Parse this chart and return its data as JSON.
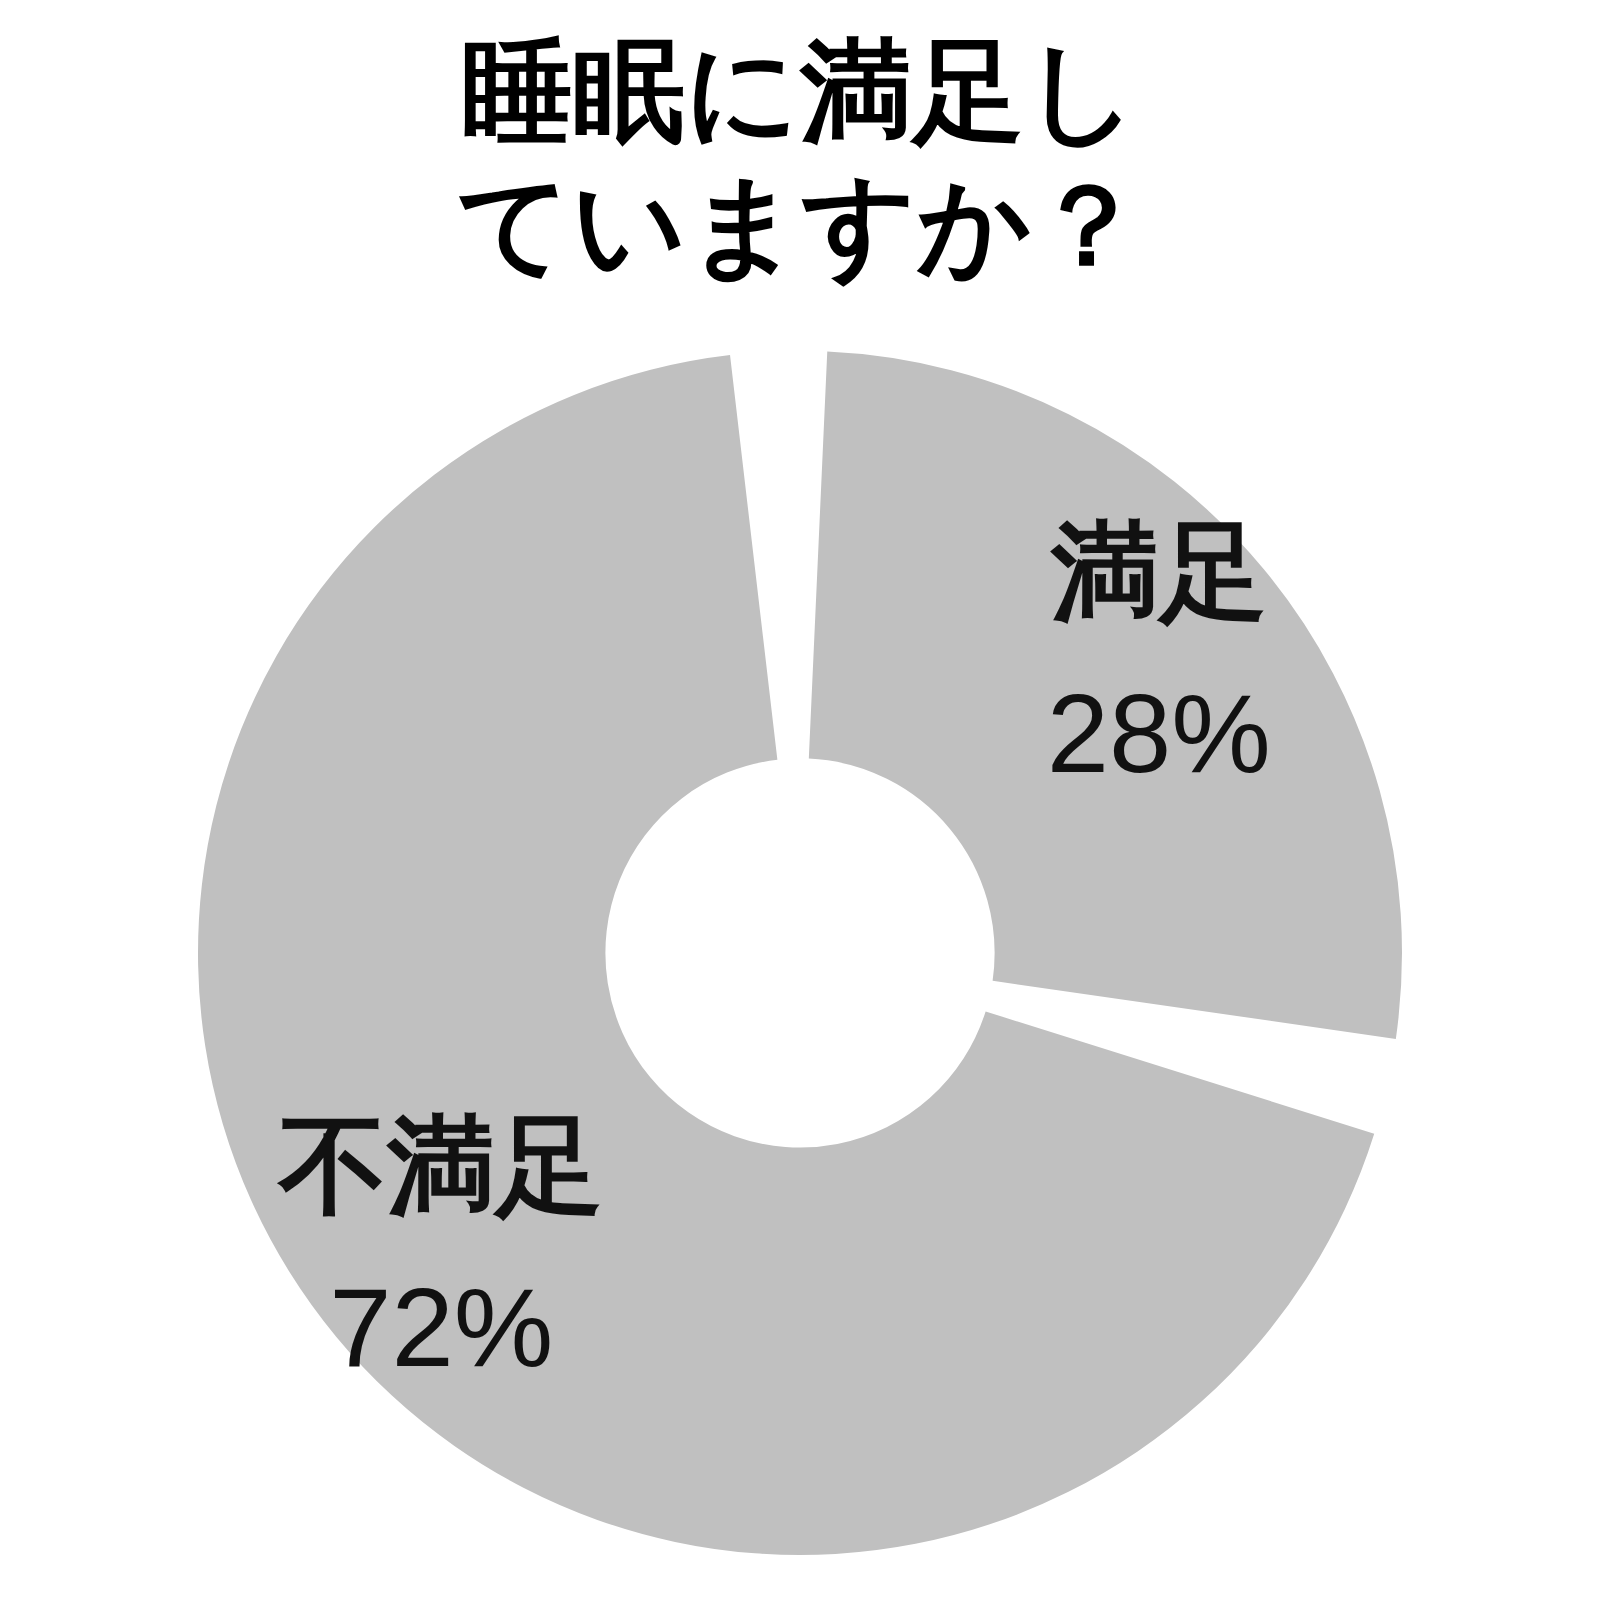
{
  "chart_data": {
    "type": "donut",
    "title": "睡眠に満足していますか？",
    "categories": [
      "満足",
      "不満足"
    ],
    "values": [
      28,
      72
    ],
    "colors": [
      "#c0c0c0",
      "#c0c0c0"
    ],
    "value_labels": [
      "28%",
      "72%"
    ],
    "legend": false
  }
}
